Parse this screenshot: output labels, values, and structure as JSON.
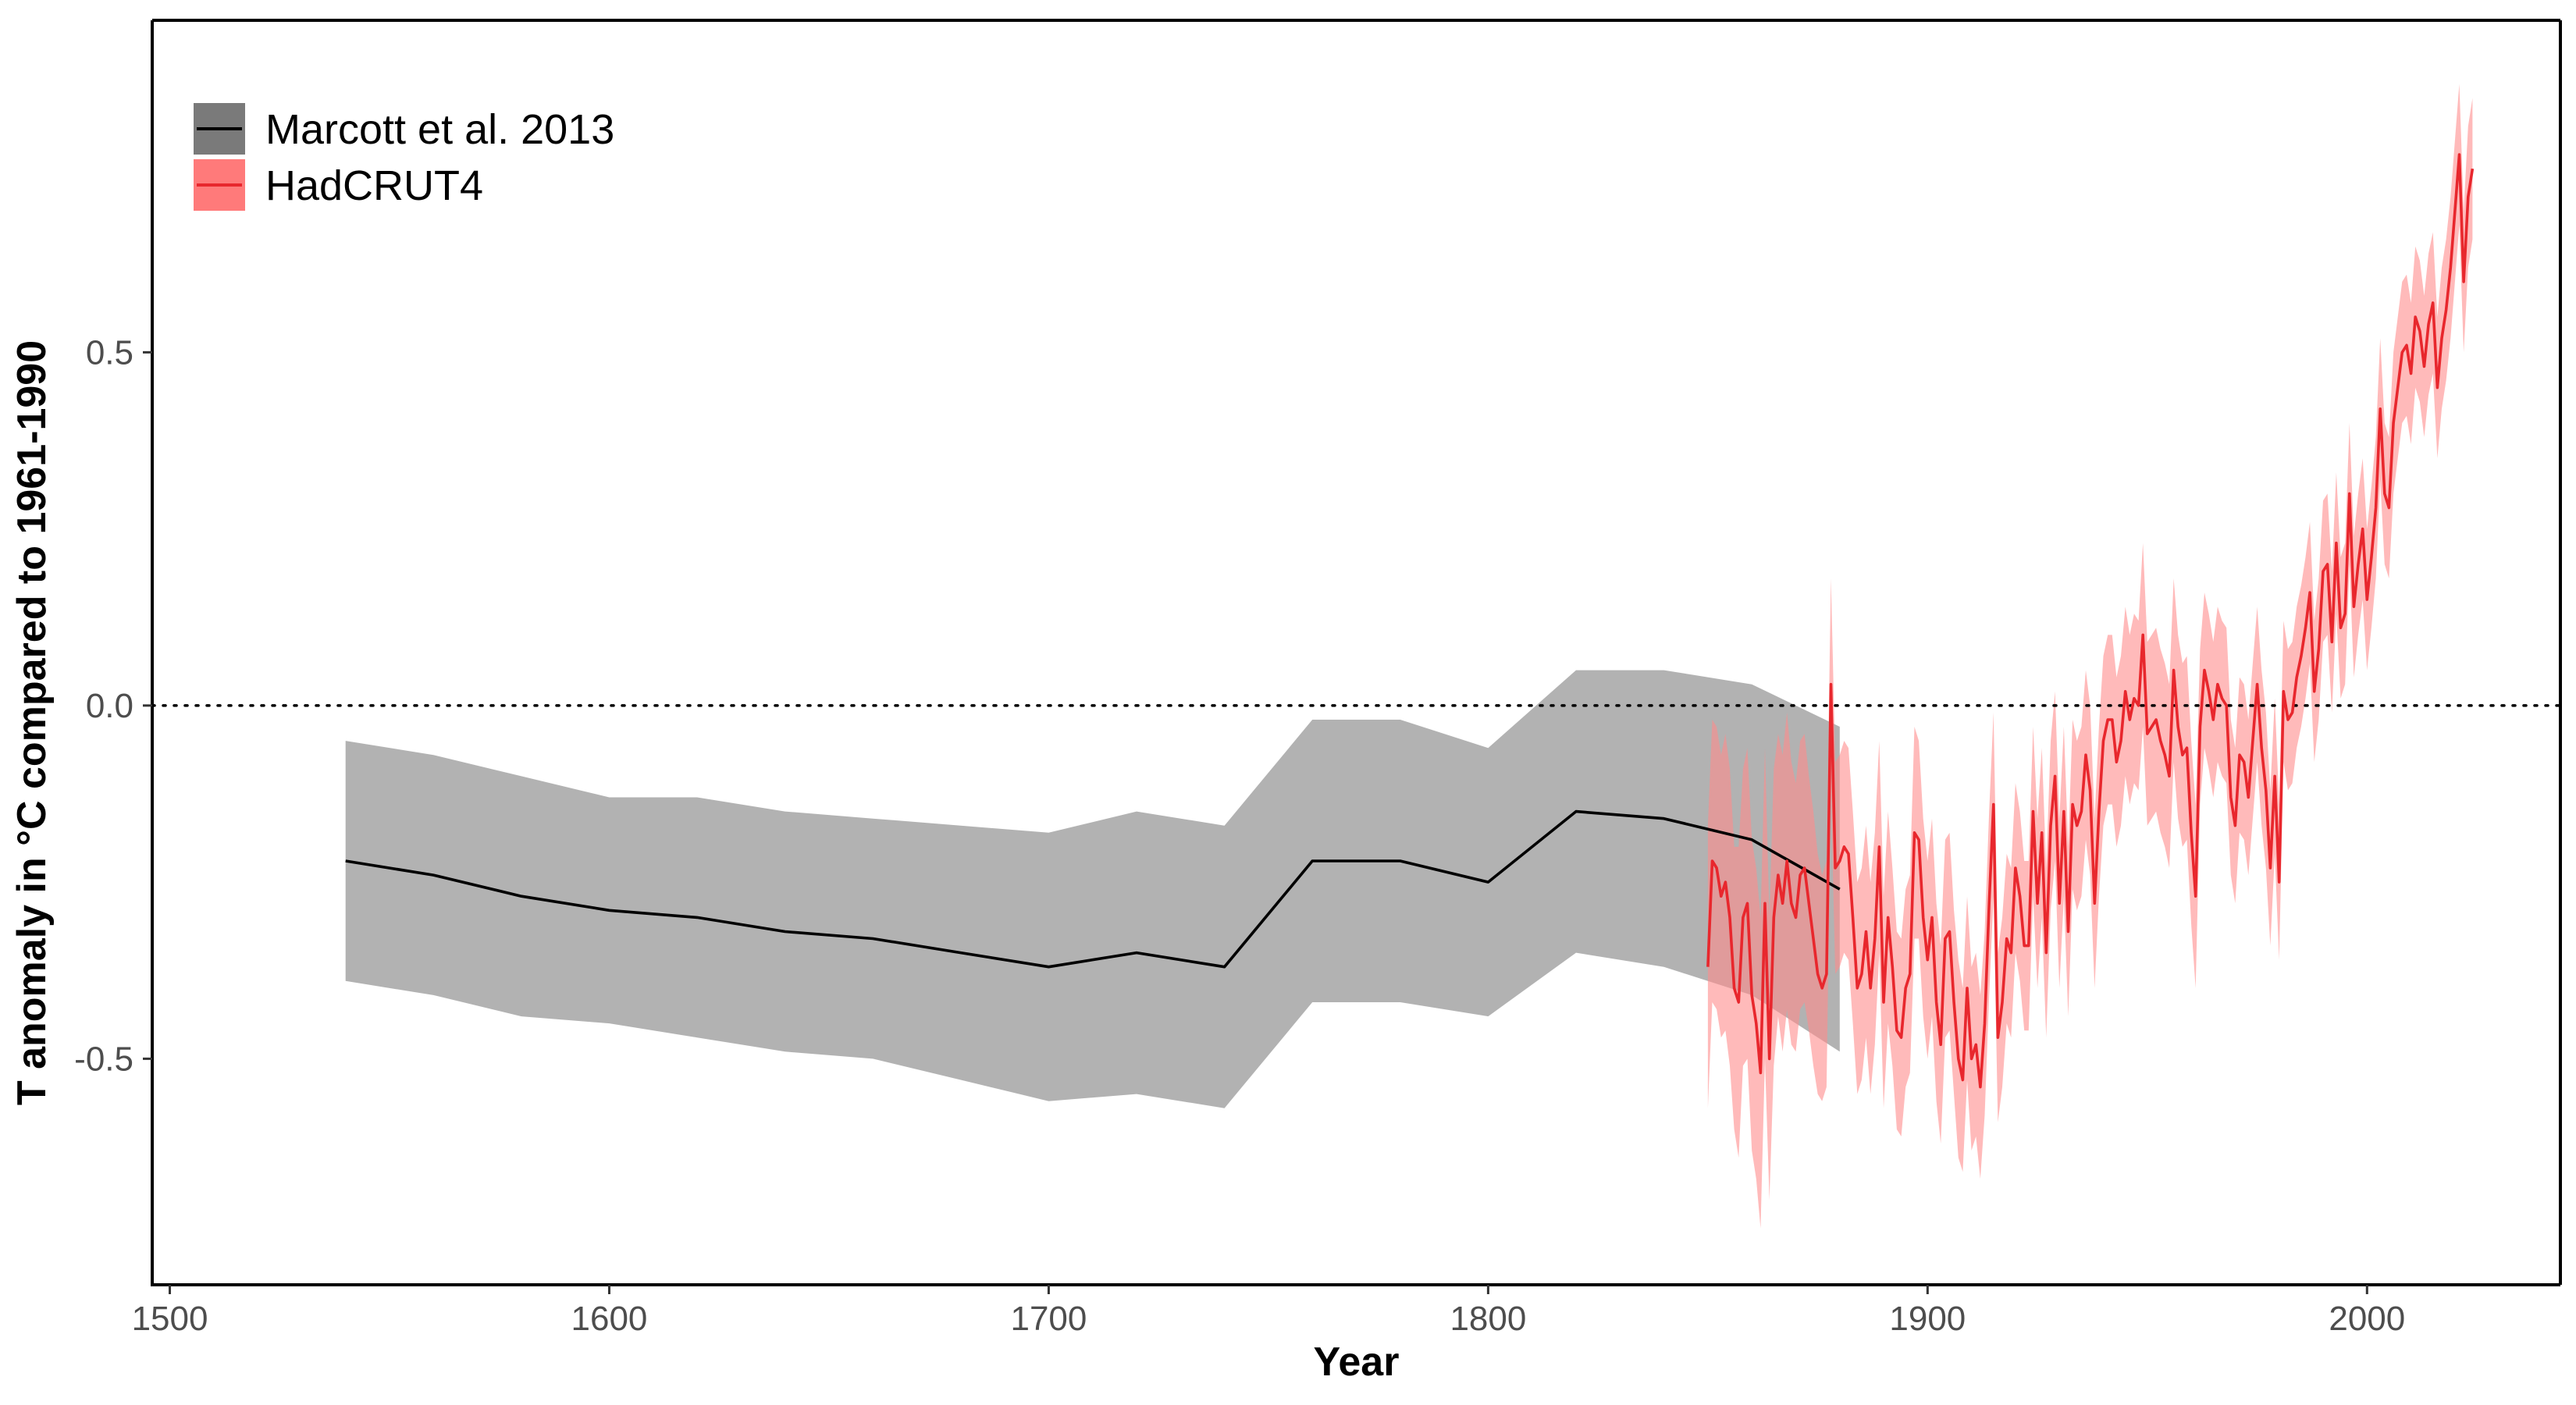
{
  "chart_data": {
    "type": "line",
    "title": "",
    "xlabel": "Year",
    "ylabel": "T anomaly in °C compared to 1961-1990",
    "xlim": [
      1496,
      2044
    ],
    "ylim": [
      -0.82,
      0.97
    ],
    "x_ticks": [
      1500,
      1600,
      1700,
      1800,
      1900,
      2000
    ],
    "x_tick_labels": [
      "1500",
      "1600",
      "1700",
      "1800",
      "1900",
      "2000"
    ],
    "y_ticks": [
      -0.5,
      0.0,
      0.5
    ],
    "y_tick_labels": [
      "-0.5",
      "0.0",
      "0.5"
    ],
    "reference_line": {
      "y": 0.0,
      "style": "dotted",
      "color": "#000000"
    },
    "grid": false,
    "legend": {
      "position": "top-left"
    },
    "series": [
      {
        "name": "Marcott et al. 2013",
        "line_color": "#000000",
        "band_color": "#7f7f7f",
        "band_opacity": 0.6,
        "x": [
          1540,
          1560,
          1580,
          1600,
          1620,
          1640,
          1660,
          1680,
          1700,
          1720,
          1740,
          1760,
          1780,
          1800,
          1820,
          1840,
          1860,
          1880
        ],
        "values": [
          -0.22,
          -0.24,
          -0.27,
          -0.29,
          -0.3,
          -0.32,
          -0.33,
          -0.35,
          -0.37,
          -0.35,
          -0.37,
          -0.22,
          -0.22,
          -0.25,
          -0.15,
          -0.16,
          -0.19,
          -0.26
        ],
        "lower": [
          -0.39,
          -0.41,
          -0.44,
          -0.45,
          -0.47,
          -0.49,
          -0.5,
          -0.53,
          -0.56,
          -0.55,
          -0.57,
          -0.42,
          -0.42,
          -0.44,
          -0.35,
          -0.37,
          -0.41,
          -0.49
        ],
        "upper": [
          -0.05,
          -0.07,
          -0.1,
          -0.13,
          -0.13,
          -0.15,
          -0.16,
          -0.17,
          -0.18,
          -0.15,
          -0.17,
          -0.02,
          -0.02,
          -0.06,
          0.05,
          0.05,
          0.03,
          -0.03
        ]
      },
      {
        "name": "HadCRUT4",
        "line_color": "#e8272d",
        "band_color": "#ff8c8c",
        "band_opacity": 0.6,
        "x_start": 1850,
        "x_step": 1,
        "values": [
          -0.37,
          -0.22,
          -0.23,
          -0.27,
          -0.25,
          -0.3,
          -0.4,
          -0.42,
          -0.3,
          -0.28,
          -0.41,
          -0.45,
          -0.52,
          -0.28,
          -0.5,
          -0.3,
          -0.24,
          -0.28,
          -0.22,
          -0.28,
          -0.3,
          -0.24,
          -0.23,
          -0.28,
          -0.33,
          -0.38,
          -0.4,
          -0.38,
          0.03,
          -0.23,
          -0.22,
          -0.2,
          -0.21,
          -0.3,
          -0.4,
          -0.38,
          -0.32,
          -0.4,
          -0.33,
          -0.2,
          -0.42,
          -0.3,
          -0.37,
          -0.46,
          -0.47,
          -0.4,
          -0.38,
          -0.18,
          -0.19,
          -0.3,
          -0.36,
          -0.3,
          -0.42,
          -0.48,
          -0.33,
          -0.32,
          -0.42,
          -0.5,
          -0.53,
          -0.4,
          -0.5,
          -0.48,
          -0.54,
          -0.45,
          -0.28,
          -0.14,
          -0.47,
          -0.42,
          -0.33,
          -0.35,
          -0.23,
          -0.27,
          -0.34,
          -0.34,
          -0.15,
          -0.28,
          -0.18,
          -0.35,
          -0.17,
          -0.1,
          -0.28,
          -0.15,
          -0.32,
          -0.14,
          -0.17,
          -0.15,
          -0.07,
          -0.12,
          -0.28,
          -0.15,
          -0.05,
          -0.02,
          -0.02,
          -0.08,
          -0.05,
          0.02,
          -0.02,
          0.01,
          0.0,
          0.1,
          -0.04,
          -0.03,
          -0.02,
          -0.05,
          -0.07,
          -0.1,
          0.05,
          -0.03,
          -0.07,
          -0.06,
          -0.18,
          -0.27,
          -0.03,
          0.05,
          0.02,
          -0.02,
          0.03,
          0.01,
          0.0,
          -0.13,
          -0.17,
          -0.07,
          -0.08,
          -0.13,
          -0.05,
          0.03,
          -0.06,
          -0.12,
          -0.23,
          -0.1,
          -0.25,
          0.02,
          -0.02,
          -0.01,
          0.04,
          0.07,
          0.11,
          0.16,
          0.02,
          0.08,
          0.19,
          0.2,
          0.09,
          0.23,
          0.11,
          0.13,
          0.3,
          0.14,
          0.2,
          0.25,
          0.15,
          0.21,
          0.28,
          0.42,
          0.3,
          0.28,
          0.4,
          0.45,
          0.5,
          0.51,
          0.47,
          0.55,
          0.53,
          0.48,
          0.54,
          0.57,
          0.45,
          0.52,
          0.56,
          0.62,
          0.7,
          0.78,
          0.6,
          0.72,
          0.76
        ],
        "lower": [
          -0.57,
          -0.42,
          -0.43,
          -0.47,
          -0.46,
          -0.51,
          -0.6,
          -0.64,
          -0.51,
          -0.5,
          -0.63,
          -0.67,
          -0.74,
          -0.5,
          -0.7,
          -0.51,
          -0.44,
          -0.49,
          -0.43,
          -0.48,
          -0.49,
          -0.43,
          -0.42,
          -0.46,
          -0.51,
          -0.55,
          -0.56,
          -0.54,
          -0.12,
          -0.38,
          -0.37,
          -0.35,
          -0.36,
          -0.45,
          -0.55,
          -0.53,
          -0.47,
          -0.55,
          -0.48,
          -0.35,
          -0.57,
          -0.45,
          -0.51,
          -0.6,
          -0.61,
          -0.54,
          -0.52,
          -0.33,
          -0.33,
          -0.44,
          -0.5,
          -0.44,
          -0.56,
          -0.62,
          -0.47,
          -0.46,
          -0.55,
          -0.64,
          -0.66,
          -0.53,
          -0.63,
          -0.61,
          -0.67,
          -0.58,
          -0.41,
          -0.27,
          -0.59,
          -0.54,
          -0.45,
          -0.47,
          -0.35,
          -0.39,
          -0.46,
          -0.46,
          -0.27,
          -0.4,
          -0.3,
          -0.47,
          -0.29,
          -0.22,
          -0.4,
          -0.27,
          -0.44,
          -0.26,
          -0.29,
          -0.27,
          -0.19,
          -0.24,
          -0.4,
          -0.27,
          -0.17,
          -0.14,
          -0.14,
          -0.2,
          -0.17,
          -0.1,
          -0.14,
          -0.11,
          -0.12,
          -0.03,
          -0.17,
          -0.16,
          -0.15,
          -0.18,
          -0.2,
          -0.23,
          -0.08,
          -0.16,
          -0.2,
          -0.19,
          -0.31,
          -0.4,
          -0.14,
          -0.06,
          -0.09,
          -0.13,
          -0.08,
          -0.1,
          -0.11,
          -0.24,
          -0.28,
          -0.18,
          -0.19,
          -0.24,
          -0.16,
          -0.08,
          -0.17,
          -0.23,
          -0.34,
          -0.21,
          -0.36,
          -0.08,
          -0.12,
          -0.11,
          -0.06,
          -0.03,
          0.01,
          0.06,
          -0.08,
          -0.02,
          0.09,
          0.1,
          -0.01,
          0.13,
          0.01,
          0.03,
          0.2,
          0.04,
          0.1,
          0.15,
          0.05,
          0.11,
          0.18,
          0.32,
          0.2,
          0.18,
          0.3,
          0.35,
          0.4,
          0.41,
          0.37,
          0.45,
          0.43,
          0.38,
          0.44,
          0.47,
          0.35,
          0.42,
          0.46,
          0.52,
          0.6,
          0.68,
          0.5,
          0.62,
          0.66
        ],
        "upper": [
          -0.17,
          -0.02,
          -0.03,
          -0.07,
          -0.04,
          -0.09,
          -0.2,
          -0.2,
          -0.09,
          -0.06,
          -0.19,
          -0.23,
          -0.3,
          -0.06,
          -0.3,
          -0.09,
          -0.04,
          -0.07,
          -0.01,
          -0.08,
          -0.11,
          -0.05,
          -0.04,
          -0.1,
          -0.15,
          -0.21,
          -0.24,
          -0.22,
          0.18,
          -0.08,
          -0.07,
          -0.05,
          -0.06,
          -0.15,
          -0.25,
          -0.23,
          -0.17,
          -0.25,
          -0.18,
          -0.05,
          -0.27,
          -0.15,
          -0.23,
          -0.32,
          -0.33,
          -0.26,
          -0.24,
          -0.03,
          -0.05,
          -0.16,
          -0.22,
          -0.16,
          -0.28,
          -0.34,
          -0.19,
          -0.18,
          -0.29,
          -0.36,
          -0.4,
          -0.27,
          -0.37,
          -0.35,
          -0.41,
          -0.32,
          -0.15,
          -0.01,
          -0.35,
          -0.3,
          -0.21,
          -0.23,
          -0.11,
          -0.15,
          -0.22,
          -0.22,
          -0.03,
          -0.16,
          -0.06,
          -0.23,
          -0.05,
          0.02,
          -0.16,
          -0.03,
          -0.2,
          -0.02,
          -0.05,
          -0.03,
          0.05,
          0.0,
          -0.16,
          -0.03,
          0.07,
          0.1,
          0.1,
          0.04,
          0.07,
          0.14,
          0.1,
          0.13,
          0.12,
          0.23,
          0.09,
          0.1,
          0.11,
          0.08,
          0.06,
          0.03,
          0.18,
          0.1,
          0.06,
          0.07,
          -0.05,
          -0.14,
          0.08,
          0.16,
          0.13,
          0.09,
          0.14,
          0.12,
          0.11,
          -0.02,
          -0.06,
          0.04,
          0.03,
          -0.02,
          0.06,
          0.14,
          0.05,
          -0.01,
          -0.12,
          0.01,
          -0.14,
          0.12,
          0.08,
          0.09,
          0.14,
          0.17,
          0.21,
          0.26,
          0.12,
          0.18,
          0.29,
          0.3,
          0.19,
          0.33,
          0.21,
          0.23,
          0.4,
          0.24,
          0.3,
          0.35,
          0.25,
          0.31,
          0.38,
          0.52,
          0.4,
          0.38,
          0.5,
          0.55,
          0.6,
          0.61,
          0.57,
          0.65,
          0.63,
          0.58,
          0.64,
          0.67,
          0.55,
          0.62,
          0.66,
          0.72,
          0.8,
          0.88,
          0.7,
          0.82,
          0.86
        ]
      }
    ]
  }
}
